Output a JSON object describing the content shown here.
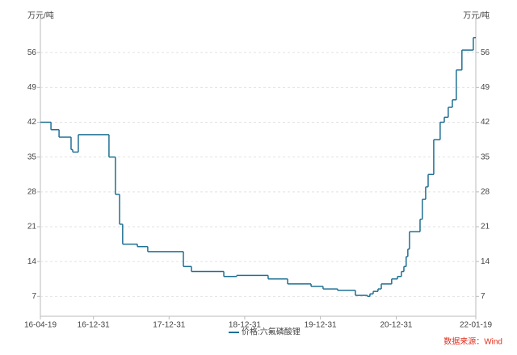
{
  "chart_data": {
    "type": "line",
    "step": "post",
    "y_label": "万元/吨",
    "y2_label": "万元/吨",
    "source": "数据来源：Wind",
    "x": [
      "16-04-19",
      "16-06-09",
      "16-07-18",
      "16-09-14",
      "16-09-22",
      "16-10-19",
      "17-03-16",
      "17-04-16",
      "17-05-06",
      "17-05-21",
      "17-07-31",
      "17-09-19",
      "18-03-10",
      "18-04-18",
      "18-09-21",
      "18-11-22",
      "19-04-23",
      "19-07-26",
      "19-11-16",
      "20-01-13",
      "20-03-23",
      "20-06-17",
      "20-08-14",
      "20-08-26",
      "20-09-11",
      "20-10-04",
      "20-10-20",
      "20-12-09",
      "21-01-06",
      "21-01-25",
      "21-02-06",
      "21-02-17",
      "21-02-25",
      "21-03-05",
      "21-04-25",
      "21-05-06",
      "21-05-22",
      "21-06-03",
      "21-06-30",
      "21-07-31",
      "21-08-20",
      "21-09-08",
      "21-09-28",
      "21-10-17",
      "21-11-13",
      "22-01-07",
      "22-01-19"
    ],
    "series": [
      {
        "name": "价格:六氟磷酸锂",
        "color": "#1f6f94",
        "values": [
          42,
          40.5,
          39,
          36.5,
          36,
          39.5,
          35,
          27.5,
          21.5,
          17.5,
          17,
          16,
          13,
          12,
          11,
          11.2,
          10.5,
          9.5,
          9,
          8.5,
          8.2,
          7.2,
          7,
          7.5,
          8,
          8.5,
          9.5,
          10.5,
          11,
          12,
          13,
          15,
          16.5,
          20,
          22.5,
          26.5,
          29,
          31.5,
          38.5,
          42,
          43,
          45,
          46.5,
          52.5,
          56.5,
          59,
          59
        ]
      }
    ],
    "xlim": [
      "16-04-19",
      "22-01-19"
    ],
    "xticks": [
      "16-04-19",
      "16-12-31",
      "17-12-31",
      "18-12-31",
      "19-12-31",
      "20-12-31",
      "22-01-19"
    ],
    "ylim": [
      3,
      63
    ],
    "yticks": [
      7,
      14,
      21,
      28,
      35,
      42,
      49,
      56
    ],
    "y2lim": [
      3,
      63
    ],
    "y2ticks": [
      7,
      14,
      21,
      28,
      35,
      42,
      49,
      56
    ],
    "grid": true,
    "legend": "bottom"
  }
}
